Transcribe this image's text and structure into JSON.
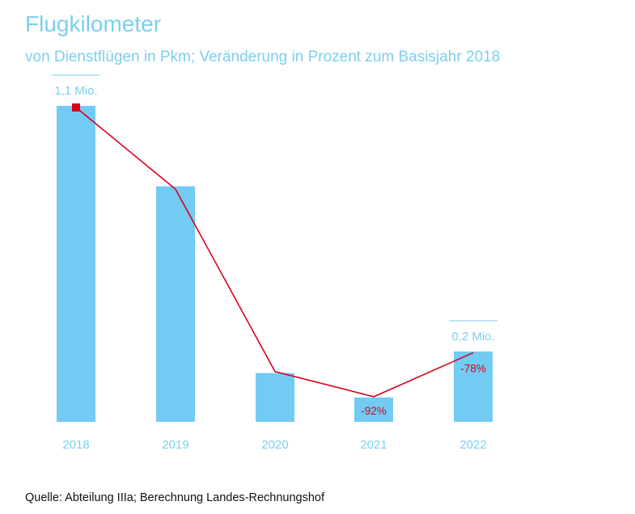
{
  "chart_data": {
    "type": "bar",
    "title": "Flugkilometer",
    "subtitle": "von Dienstflügen in Pkm; Veränderung in Prozent zum Basisjahr 2018",
    "categories": [
      "2018",
      "2019",
      "2020",
      "2021",
      "2022"
    ],
    "values": [
      1.1,
      0.82,
      0.17,
      0.085,
      0.245
    ],
    "unit": "Mio. Pkm",
    "ylim": [
      0,
      1.1
    ],
    "grid": false,
    "callouts": [
      {
        "category": "2018",
        "label": "1,1 Mio."
      },
      {
        "category": "2022",
        "label": "0,2 Mio."
      }
    ],
    "line_series": {
      "values": [
        100,
        74,
        16,
        8,
        22
      ],
      "labels": [
        "",
        "",
        "",
        "-92%",
        "-78%"
      ]
    },
    "colors": {
      "bar": "#72cbf2",
      "line": "#d9001b",
      "text": "#7ccfef"
    }
  },
  "source": "Quelle: Abteilung IIIa; Berechnung Landes-Rechnungshof"
}
